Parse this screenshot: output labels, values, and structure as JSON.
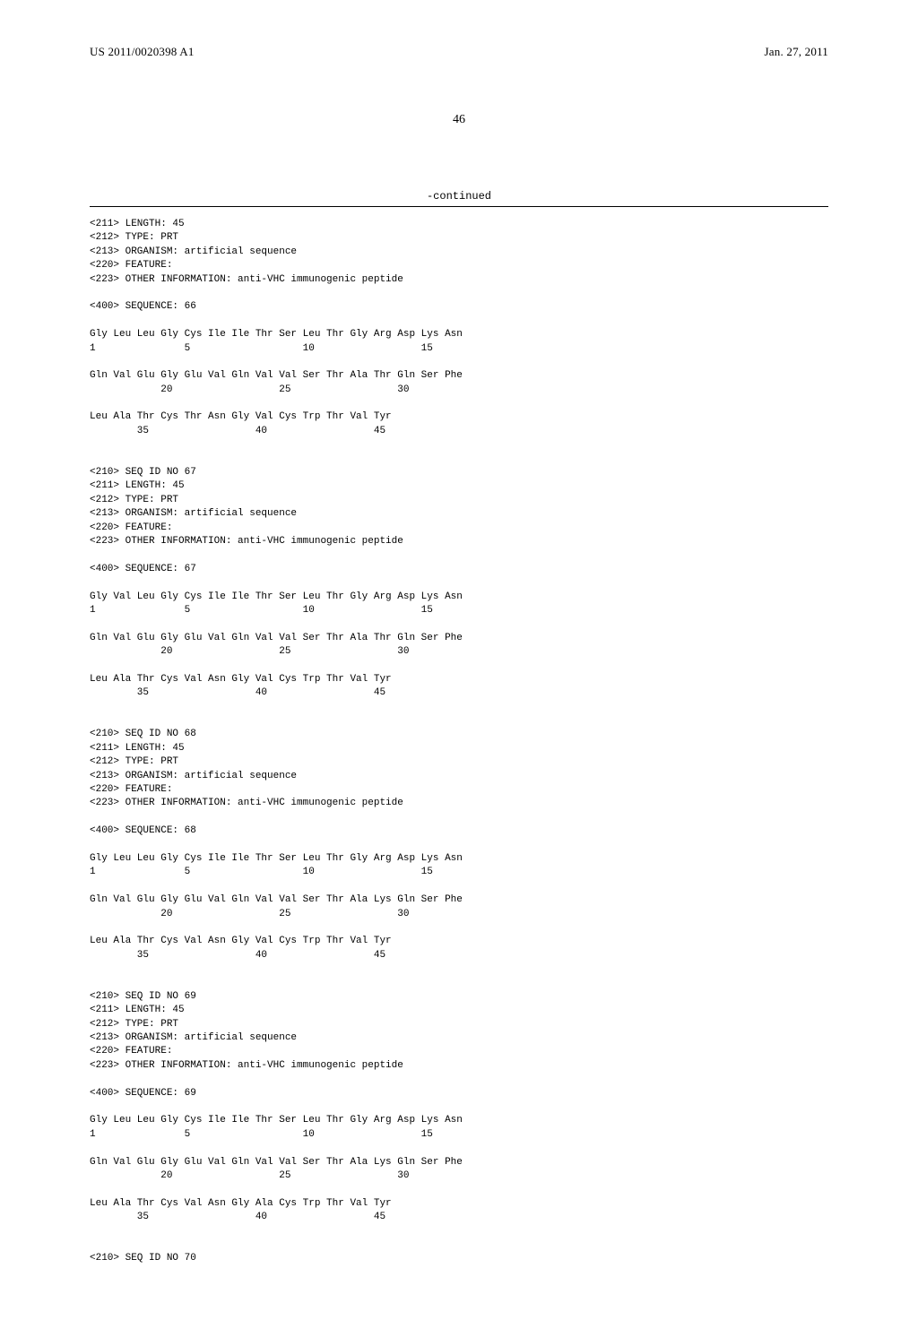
{
  "header": {
    "publication_number": "US 2011/0020398 A1",
    "date": "Jan. 27, 2011"
  },
  "page_number": "46",
  "continued_label": "-continued",
  "sequence_listing": "<211> LENGTH: 45\n<212> TYPE: PRT\n<213> ORGANISM: artificial sequence\n<220> FEATURE:\n<223> OTHER INFORMATION: anti-VHC immunogenic peptide\n\n<400> SEQUENCE: 66\n\nGly Leu Leu Gly Cys Ile Ile Thr Ser Leu Thr Gly Arg Asp Lys Asn\n1               5                   10                  15\n\nGln Val Glu Gly Glu Val Gln Val Val Ser Thr Ala Thr Gln Ser Phe\n            20                  25                  30\n\nLeu Ala Thr Cys Thr Asn Gly Val Cys Trp Thr Val Tyr\n        35                  40                  45\n\n\n<210> SEQ ID NO 67\n<211> LENGTH: 45\n<212> TYPE: PRT\n<213> ORGANISM: artificial sequence\n<220> FEATURE:\n<223> OTHER INFORMATION: anti-VHC immunogenic peptide\n\n<400> SEQUENCE: 67\n\nGly Val Leu Gly Cys Ile Ile Thr Ser Leu Thr Gly Arg Asp Lys Asn\n1               5                   10                  15\n\nGln Val Glu Gly Glu Val Gln Val Val Ser Thr Ala Thr Gln Ser Phe\n            20                  25                  30\n\nLeu Ala Thr Cys Val Asn Gly Val Cys Trp Thr Val Tyr\n        35                  40                  45\n\n\n<210> SEQ ID NO 68\n<211> LENGTH: 45\n<212> TYPE: PRT\n<213> ORGANISM: artificial sequence\n<220> FEATURE:\n<223> OTHER INFORMATION: anti-VHC immunogenic peptide\n\n<400> SEQUENCE: 68\n\nGly Leu Leu Gly Cys Ile Ile Thr Ser Leu Thr Gly Arg Asp Lys Asn\n1               5                   10                  15\n\nGln Val Glu Gly Glu Val Gln Val Val Ser Thr Ala Lys Gln Ser Phe\n            20                  25                  30\n\nLeu Ala Thr Cys Val Asn Gly Val Cys Trp Thr Val Tyr\n        35                  40                  45\n\n\n<210> SEQ ID NO 69\n<211> LENGTH: 45\n<212> TYPE: PRT\n<213> ORGANISM: artificial sequence\n<220> FEATURE:\n<223> OTHER INFORMATION: anti-VHC immunogenic peptide\n\n<400> SEQUENCE: 69\n\nGly Leu Leu Gly Cys Ile Ile Thr Ser Leu Thr Gly Arg Asp Lys Asn\n1               5                   10                  15\n\nGln Val Glu Gly Glu Val Gln Val Val Ser Thr Ala Lys Gln Ser Phe\n            20                  25                  30\n\nLeu Ala Thr Cys Val Asn Gly Ala Cys Trp Thr Val Tyr\n        35                  40                  45\n\n\n<210> SEQ ID NO 70"
}
